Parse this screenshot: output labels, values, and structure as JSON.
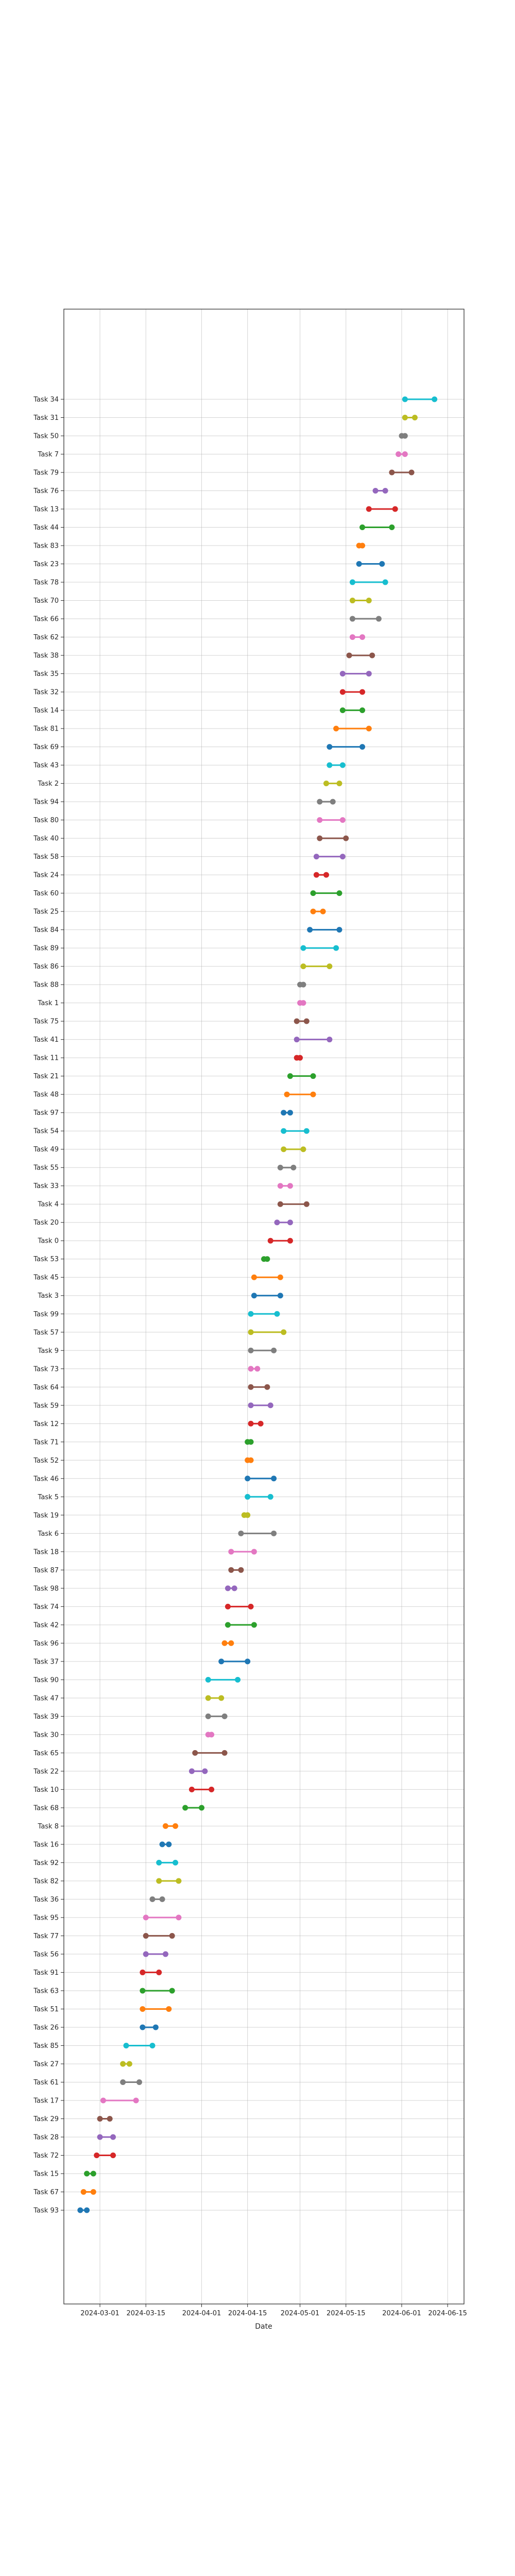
{
  "chart_data": {
    "type": "dumbbell",
    "title": "",
    "xlabel": "Date",
    "ylabel": "",
    "x_scale": "date",
    "xlim": [
      "2024-02-19",
      "2024-06-20"
    ],
    "x_ticks": [
      "2024-03-01",
      "2024-03-15",
      "2024-04-01",
      "2024-04-15",
      "2024-05-01",
      "2024-05-15",
      "2024-06-01",
      "2024-06-15"
    ],
    "grid": true,
    "legend": "none",
    "palette": [
      "#1f77b4",
      "#ff7f0e",
      "#2ca02c",
      "#d62728",
      "#9467bd",
      "#8c564b",
      "#e377c2",
      "#7f7f7f",
      "#bcbd22",
      "#17becf"
    ],
    "tasks": [
      {
        "label": "Task 34",
        "start": "2024-06-02",
        "end": "2024-06-11"
      },
      {
        "label": "Task 31",
        "start": "2024-06-02",
        "end": "2024-06-05"
      },
      {
        "label": "Task 50",
        "start": "2024-06-01",
        "end": "2024-06-02"
      },
      {
        "label": "Task 7",
        "start": "2024-05-31",
        "end": "2024-06-02"
      },
      {
        "label": "Task 79",
        "start": "2024-05-29",
        "end": "2024-06-04"
      },
      {
        "label": "Task 76",
        "start": "2024-05-24",
        "end": "2024-05-27"
      },
      {
        "label": "Task 13",
        "start": "2024-05-22",
        "end": "2024-05-30"
      },
      {
        "label": "Task 44",
        "start": "2024-05-20",
        "end": "2024-05-29"
      },
      {
        "label": "Task 83",
        "start": "2024-05-19",
        "end": "2024-05-20"
      },
      {
        "label": "Task 23",
        "start": "2024-05-19",
        "end": "2024-05-26"
      },
      {
        "label": "Task 78",
        "start": "2024-05-17",
        "end": "2024-05-27"
      },
      {
        "label": "Task 70",
        "start": "2024-05-17",
        "end": "2024-05-22"
      },
      {
        "label": "Task 66",
        "start": "2024-05-17",
        "end": "2024-05-25"
      },
      {
        "label": "Task 62",
        "start": "2024-05-17",
        "end": "2024-05-20"
      },
      {
        "label": "Task 38",
        "start": "2024-05-16",
        "end": "2024-05-23"
      },
      {
        "label": "Task 35",
        "start": "2024-05-14",
        "end": "2024-05-22"
      },
      {
        "label": "Task 32",
        "start": "2024-05-14",
        "end": "2024-05-20"
      },
      {
        "label": "Task 14",
        "start": "2024-05-14",
        "end": "2024-05-20"
      },
      {
        "label": "Task 81",
        "start": "2024-05-12",
        "end": "2024-05-22"
      },
      {
        "label": "Task 69",
        "start": "2024-05-10",
        "end": "2024-05-20"
      },
      {
        "label": "Task 43",
        "start": "2024-05-10",
        "end": "2024-05-14"
      },
      {
        "label": "Task 2",
        "start": "2024-05-09",
        "end": "2024-05-13"
      },
      {
        "label": "Task 94",
        "start": "2024-05-07",
        "end": "2024-05-11"
      },
      {
        "label": "Task 80",
        "start": "2024-05-07",
        "end": "2024-05-14"
      },
      {
        "label": "Task 40",
        "start": "2024-05-07",
        "end": "2024-05-15"
      },
      {
        "label": "Task 58",
        "start": "2024-05-06",
        "end": "2024-05-14"
      },
      {
        "label": "Task 24",
        "start": "2024-05-06",
        "end": "2024-05-09"
      },
      {
        "label": "Task 60",
        "start": "2024-05-05",
        "end": "2024-05-13"
      },
      {
        "label": "Task 25",
        "start": "2024-05-05",
        "end": "2024-05-08"
      },
      {
        "label": "Task 84",
        "start": "2024-05-04",
        "end": "2024-05-13"
      },
      {
        "label": "Task 89",
        "start": "2024-05-02",
        "end": "2024-05-12"
      },
      {
        "label": "Task 86",
        "start": "2024-05-02",
        "end": "2024-05-10"
      },
      {
        "label": "Task 88",
        "start": "2024-05-01",
        "end": "2024-05-02"
      },
      {
        "label": "Task 1",
        "start": "2024-05-01",
        "end": "2024-05-02"
      },
      {
        "label": "Task 75",
        "start": "2024-04-30",
        "end": "2024-05-03"
      },
      {
        "label": "Task 41",
        "start": "2024-04-30",
        "end": "2024-05-10"
      },
      {
        "label": "Task 11",
        "start": "2024-04-30",
        "end": "2024-05-01"
      },
      {
        "label": "Task 21",
        "start": "2024-04-28",
        "end": "2024-05-05"
      },
      {
        "label": "Task 48",
        "start": "2024-04-27",
        "end": "2024-05-05"
      },
      {
        "label": "Task 97",
        "start": "2024-04-26",
        "end": "2024-04-28"
      },
      {
        "label": "Task 54",
        "start": "2024-04-26",
        "end": "2024-05-03"
      },
      {
        "label": "Task 49",
        "start": "2024-04-26",
        "end": "2024-05-02"
      },
      {
        "label": "Task 55",
        "start": "2024-04-25",
        "end": "2024-04-29"
      },
      {
        "label": "Task 33",
        "start": "2024-04-25",
        "end": "2024-04-28"
      },
      {
        "label": "Task 4",
        "start": "2024-04-25",
        "end": "2024-05-03"
      },
      {
        "label": "Task 20",
        "start": "2024-04-24",
        "end": "2024-04-28"
      },
      {
        "label": "Task 0",
        "start": "2024-04-22",
        "end": "2024-04-28"
      },
      {
        "label": "Task 53",
        "start": "2024-04-20",
        "end": "2024-04-21"
      },
      {
        "label": "Task 45",
        "start": "2024-04-17",
        "end": "2024-04-25"
      },
      {
        "label": "Task 3",
        "start": "2024-04-17",
        "end": "2024-04-25"
      },
      {
        "label": "Task 99",
        "start": "2024-04-16",
        "end": "2024-04-24"
      },
      {
        "label": "Task 57",
        "start": "2024-04-16",
        "end": "2024-04-26"
      },
      {
        "label": "Task 9",
        "start": "2024-04-16",
        "end": "2024-04-23"
      },
      {
        "label": "Task 73",
        "start": "2024-04-16",
        "end": "2024-04-18"
      },
      {
        "label": "Task 64",
        "start": "2024-04-16",
        "end": "2024-04-21"
      },
      {
        "label": "Task 59",
        "start": "2024-04-16",
        "end": "2024-04-22"
      },
      {
        "label": "Task 12",
        "start": "2024-04-16",
        "end": "2024-04-19"
      },
      {
        "label": "Task 71",
        "start": "2024-04-15",
        "end": "2024-04-16"
      },
      {
        "label": "Task 52",
        "start": "2024-04-15",
        "end": "2024-04-16"
      },
      {
        "label": "Task 46",
        "start": "2024-04-15",
        "end": "2024-04-23"
      },
      {
        "label": "Task 5",
        "start": "2024-04-15",
        "end": "2024-04-22"
      },
      {
        "label": "Task 19",
        "start": "2024-04-14",
        "end": "2024-04-15"
      },
      {
        "label": "Task 6",
        "start": "2024-04-13",
        "end": "2024-04-23"
      },
      {
        "label": "Task 18",
        "start": "2024-04-10",
        "end": "2024-04-17"
      },
      {
        "label": "Task 87",
        "start": "2024-04-10",
        "end": "2024-04-13"
      },
      {
        "label": "Task 98",
        "start": "2024-04-09",
        "end": "2024-04-11"
      },
      {
        "label": "Task 74",
        "start": "2024-04-09",
        "end": "2024-04-16"
      },
      {
        "label": "Task 42",
        "start": "2024-04-09",
        "end": "2024-04-17"
      },
      {
        "label": "Task 96",
        "start": "2024-04-08",
        "end": "2024-04-10"
      },
      {
        "label": "Task 37",
        "start": "2024-04-07",
        "end": "2024-04-15"
      },
      {
        "label": "Task 90",
        "start": "2024-04-03",
        "end": "2024-04-12"
      },
      {
        "label": "Task 47",
        "start": "2024-04-03",
        "end": "2024-04-07"
      },
      {
        "label": "Task 39",
        "start": "2024-04-03",
        "end": "2024-04-08"
      },
      {
        "label": "Task 30",
        "start": "2024-04-03",
        "end": "2024-04-04"
      },
      {
        "label": "Task 65",
        "start": "2024-03-30",
        "end": "2024-04-08"
      },
      {
        "label": "Task 22",
        "start": "2024-03-29",
        "end": "2024-04-02"
      },
      {
        "label": "Task 10",
        "start": "2024-03-29",
        "end": "2024-04-04"
      },
      {
        "label": "Task 68",
        "start": "2024-03-27",
        "end": "2024-04-01"
      },
      {
        "label": "Task 8",
        "start": "2024-03-21",
        "end": "2024-03-24"
      },
      {
        "label": "Task 16",
        "start": "2024-03-20",
        "end": "2024-03-22"
      },
      {
        "label": "Task 92",
        "start": "2024-03-19",
        "end": "2024-03-24"
      },
      {
        "label": "Task 82",
        "start": "2024-03-19",
        "end": "2024-03-25"
      },
      {
        "label": "Task 36",
        "start": "2024-03-17",
        "end": "2024-03-20"
      },
      {
        "label": "Task 95",
        "start": "2024-03-15",
        "end": "2024-03-25"
      },
      {
        "label": "Task 77",
        "start": "2024-03-15",
        "end": "2024-03-23"
      },
      {
        "label": "Task 56",
        "start": "2024-03-15",
        "end": "2024-03-21"
      },
      {
        "label": "Task 91",
        "start": "2024-03-14",
        "end": "2024-03-19"
      },
      {
        "label": "Task 63",
        "start": "2024-03-14",
        "end": "2024-03-23"
      },
      {
        "label": "Task 51",
        "start": "2024-03-14",
        "end": "2024-03-22"
      },
      {
        "label": "Task 26",
        "start": "2024-03-14",
        "end": "2024-03-18"
      },
      {
        "label": "Task 85",
        "start": "2024-03-09",
        "end": "2024-03-17"
      },
      {
        "label": "Task 27",
        "start": "2024-03-08",
        "end": "2024-03-10"
      },
      {
        "label": "Task 61",
        "start": "2024-03-08",
        "end": "2024-03-13"
      },
      {
        "label": "Task 17",
        "start": "2024-03-02",
        "end": "2024-03-12"
      },
      {
        "label": "Task 29",
        "start": "2024-03-01",
        "end": "2024-03-04"
      },
      {
        "label": "Task 28",
        "start": "2024-03-01",
        "end": "2024-03-05"
      },
      {
        "label": "Task 72",
        "start": "2024-02-29",
        "end": "2024-03-05"
      },
      {
        "label": "Task 15",
        "start": "2024-02-26",
        "end": "2024-02-28"
      },
      {
        "label": "Task 67",
        "start": "2024-02-25",
        "end": "2024-02-28"
      },
      {
        "label": "Task 93",
        "start": "2024-02-24",
        "end": "2024-02-26"
      }
    ]
  }
}
